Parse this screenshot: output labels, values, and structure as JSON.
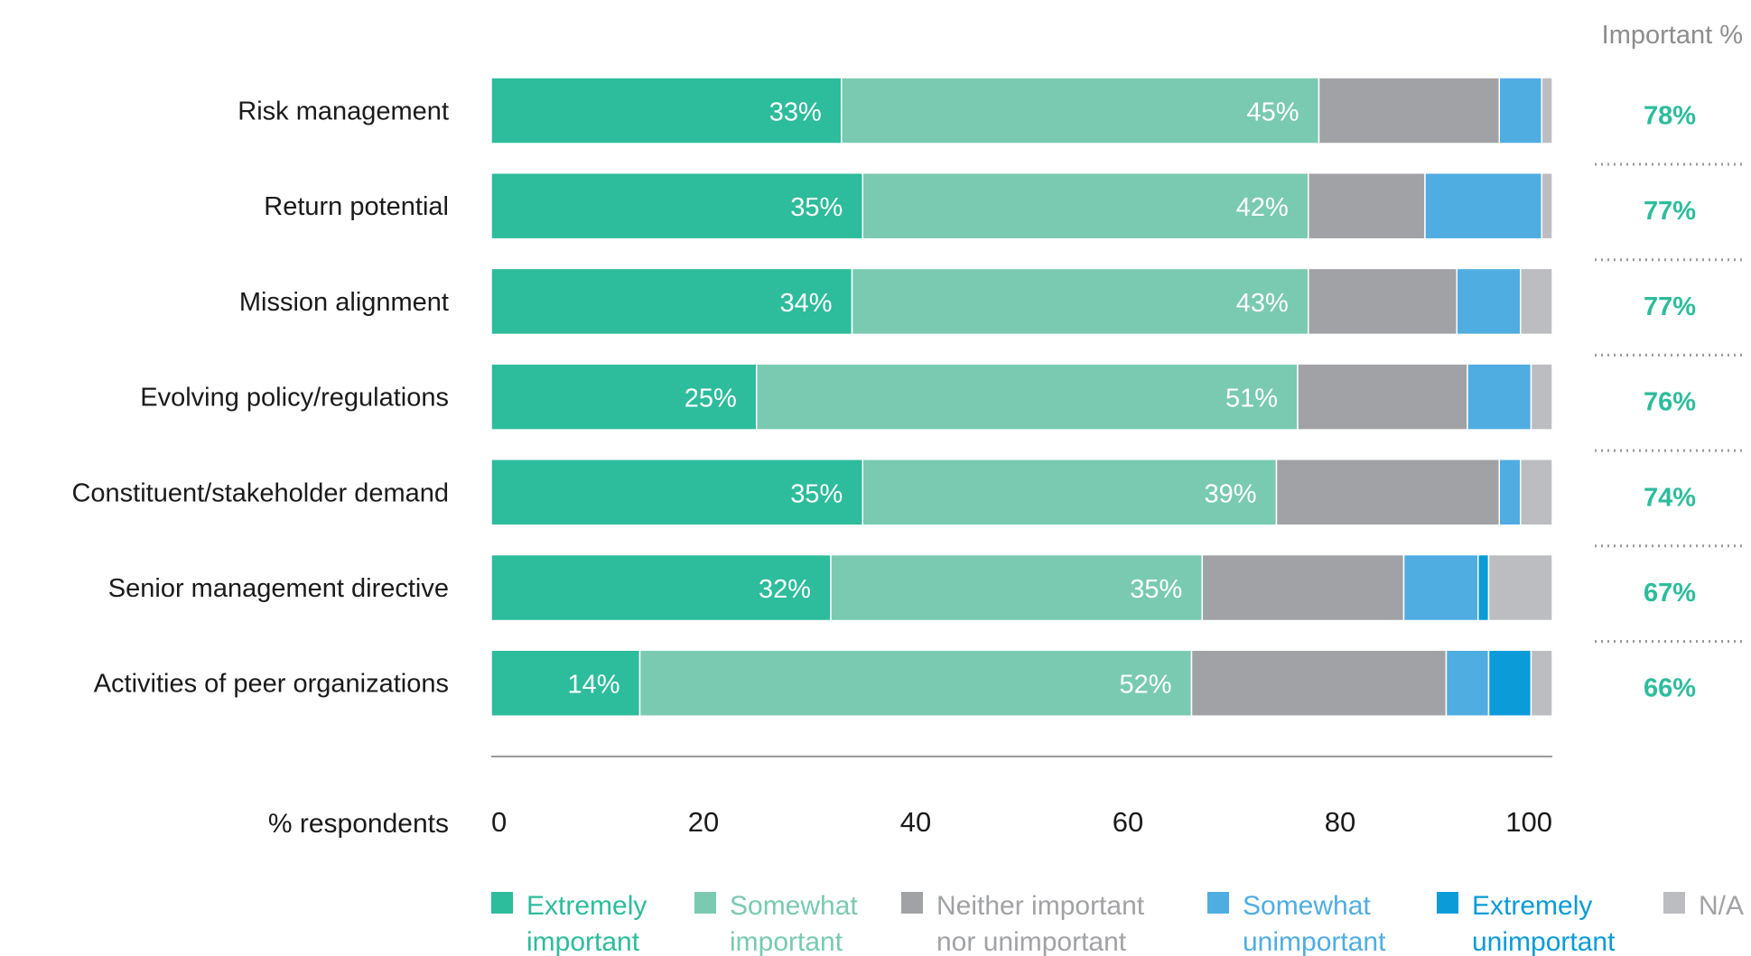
{
  "chart_data": {
    "type": "bar",
    "orientation": "horizontal",
    "stacked": true,
    "categories": [
      "Risk management",
      "Return potential",
      "Mission alignment",
      "Evolving policy/regulations",
      "Constituent/stakeholder demand",
      "Senior management directive",
      "Activities of peer organizations"
    ],
    "series": [
      {
        "name": "Extremely important",
        "color": "#2dbc9c",
        "values": [
          33,
          35,
          34,
          25,
          35,
          32,
          14
        ],
        "labels": [
          "33%",
          "35%",
          "34%",
          "25%",
          "35%",
          "32%",
          "14%"
        ]
      },
      {
        "name": "Somewhat important",
        "color": "#79cab1",
        "values": [
          45,
          42,
          43,
          51,
          39,
          35,
          52
        ],
        "labels": [
          "45%",
          "42%",
          "43%",
          "51%",
          "39%",
          "35%",
          "52%"
        ]
      },
      {
        "name": "Neither important nor unimportant",
        "color": "#a1a2a5",
        "values": [
          17,
          11,
          14,
          16,
          21,
          19,
          24
        ]
      },
      {
        "name": "Somewhat unimportant",
        "color": "#4fade2",
        "values": [
          4,
          11,
          6,
          6,
          2,
          7,
          4
        ]
      },
      {
        "name": "Extremely unimportant",
        "color": "#0a9bd8",
        "values": [
          0,
          0,
          0,
          0,
          0,
          1,
          4
        ]
      },
      {
        "name": "N/A",
        "color": "#bcbdc0",
        "values": [
          1,
          1,
          3,
          2,
          3,
          6,
          2
        ]
      }
    ],
    "important_header": "Important %",
    "important": [
      "78%",
      "77%",
      "77%",
      "76%",
      "74%",
      "67%",
      "66%"
    ],
    "important_color": "#2dbc9c",
    "xlabel": "% respondents",
    "xticks": [
      "0",
      "20",
      "40",
      "60",
      "80",
      "100"
    ],
    "xlim": [
      0,
      100
    ],
    "legend": {
      "position": "bottom",
      "items": [
        {
          "line1": "Extremely",
          "line2": "important",
          "swatch": "#2dbc9c",
          "text_color": "#2dbc9c"
        },
        {
          "line1": "Somewhat",
          "line2": "important",
          "swatch": "#79cab1",
          "text_color": "#79cab1"
        },
        {
          "line1": "Neither important",
          "line2": "nor unimportant",
          "swatch": "#a1a2a5",
          "text_color": "#a1a2a5"
        },
        {
          "line1": "Somewhat",
          "line2": "unimportant",
          "swatch": "#4fade2",
          "text_color": "#4fade2"
        },
        {
          "line1": "Extremely",
          "line2": "unimportant",
          "swatch": "#0a9bd8",
          "text_color": "#0a9bd8"
        },
        {
          "line1": "N/A",
          "line2": "",
          "swatch": "#bcbdc0",
          "text_color": "#a1a2a5"
        }
      ]
    }
  }
}
